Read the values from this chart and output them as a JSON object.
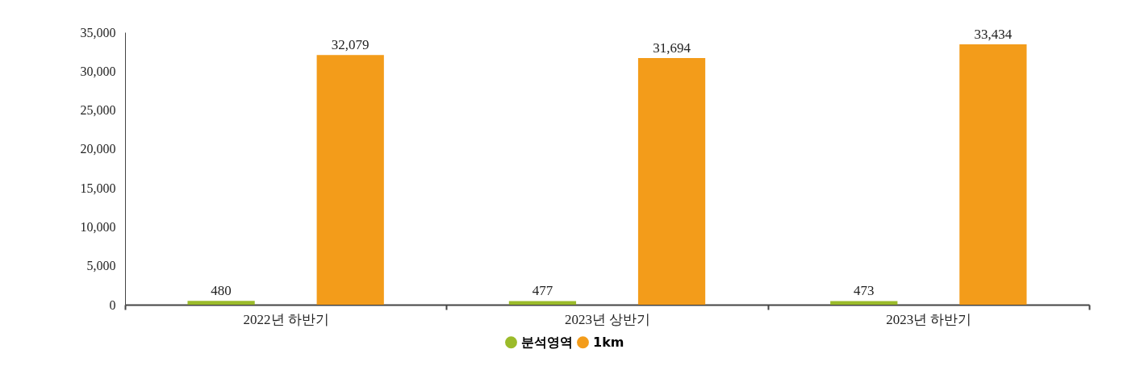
{
  "chart_data": {
    "type": "bar",
    "categories": [
      "2022년 하반기",
      "2023년 상반기",
      "2023년 하반기"
    ],
    "series": [
      {
        "name": "분석영역",
        "color": "#9bbb2a",
        "values": [
          480,
          477,
          473
        ],
        "value_labels": [
          "480",
          "477",
          "473"
        ]
      },
      {
        "name": "1km",
        "color": "#f39c1a",
        "values": [
          32079,
          31694,
          33434
        ],
        "value_labels": [
          "32,079",
          "31,694",
          "33,434"
        ]
      }
    ],
    "ylim": [
      0,
      35000
    ],
    "yticks": [
      0,
      {
        "value": 5000,
        "label": "5,000"
      },
      {
        "value": 10000,
        "label": "10,000"
      },
      {
        "value": 15000,
        "label": "15,000"
      },
      {
        "value": 20000,
        "label": "20,000"
      },
      {
        "value": 25000,
        "label": "25,000"
      },
      {
        "value": 30000,
        "label": "30,000"
      },
      {
        "value": 35000,
        "label": "35,000"
      }
    ],
    "legend": "bottom",
    "grid": false
  }
}
